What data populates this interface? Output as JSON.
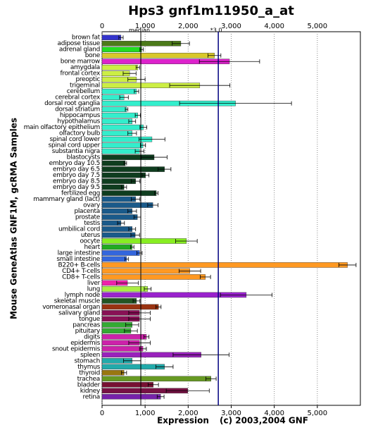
{
  "chart_data": {
    "type": "bar",
    "orientation": "horizontal",
    "title": "Hps3 gnf1m11950_a_at",
    "y_label": "Mouse GeneAtlas GNF1M, gcRMA Samples",
    "x_label": "Expression",
    "credit": "(c) 2003,2004 GNF",
    "median": 900,
    "median_label": "median",
    "median_multiple": {
      "value": 3,
      "label": "*3.0"
    },
    "categories": [
      "brown fat",
      "adipose tissue",
      "adrenal gland",
      "bone",
      "bone marrow",
      "amygdala",
      "frontal cortex",
      "preoptic",
      "trigeminal",
      "cerebellum",
      "cerebral cortex",
      "dorsal root ganglia",
      "dorsal striatum",
      "hippocampus",
      "hypothalamus",
      "main olfactory epithelium",
      "olfactory bulb",
      "spinal cord lower",
      "spinal cord upper",
      "substantia nigra",
      "blastocysts",
      "embryo day 10.5",
      "embryo day 6.5",
      "embryo day 7.5",
      "embryo day 8.5",
      "embryo day 9.5",
      "fertilized egg",
      "mammary gland (lact)",
      "ovary",
      "placenta",
      "prostate",
      "testis",
      "umbilical cord",
      "uterus",
      "oocyte",
      "heart",
      "large intestine",
      "small intestine",
      "B220+ B-cells",
      "CD4+ T-cells",
      "CD8+ T-cells",
      "liver",
      "lung",
      "lymph node",
      "skeletal muscle",
      "vomeronasal organ",
      "salivary gland",
      "tongue",
      "pancreas",
      "pituitary",
      "digits",
      "epidermis",
      "snout epidermis",
      "spleen",
      "stomach",
      "thymus",
      "thyroid",
      "trachea",
      "bladder",
      "kidney",
      "retina"
    ],
    "values": [
      440,
      1830,
      920,
      2610,
      2960,
      830,
      640,
      800,
      2270,
      800,
      510,
      3100,
      570,
      830,
      700,
      960,
      700,
      1160,
      950,
      870,
      1210,
      540,
      1450,
      1010,
      780,
      510,
      1260,
      780,
      1180,
      700,
      820,
      440,
      700,
      770,
      1960,
      700,
      870,
      570,
      5700,
      2040,
      2400,
      590,
      1060,
      3350,
      800,
      1310,
      870,
      870,
      700,
      670,
      1030,
      870,
      950,
      2300,
      700,
      1450,
      510,
      2530,
      1190,
      1990,
      1360
    ],
    "errors": [
      50,
      200,
      40,
      150,
      700,
      40,
      150,
      200,
      700,
      50,
      100,
      1300,
      30,
      60,
      80,
      80,
      100,
      300,
      60,
      100,
      300,
      30,
      150,
      80,
      100,
      60,
      40,
      100,
      120,
      100,
      80,
      80,
      80,
      100,
      250,
      40,
      60,
      40,
      200,
      250,
      120,
      250,
      80,
      600,
      80,
      60,
      250,
      250,
      150,
      150,
      60,
      250,
      80,
      650,
      200,
      200,
      60,
      120,
      120,
      500,
      80
    ],
    "colors": [
      "#3333cc",
      "#4c7a1a",
      "#22dd22",
      "#d8c82a",
      "#dd22cc",
      "#ccee44",
      "#ccee44",
      "#ccee44",
      "#ccee44",
      "#33eecc",
      "#33eecc",
      "#33eecc",
      "#33eecc",
      "#33eecc",
      "#33eecc",
      "#33eecc",
      "#33eecc",
      "#33eecc",
      "#33eecc",
      "#33eecc",
      "#0f3d1f",
      "#0f3d1f",
      "#0f3d1f",
      "#0f3d1f",
      "#0f3d1f",
      "#0f3d1f",
      "#0f3d1f",
      "#1a5a8a",
      "#1a5a8a",
      "#1a5a8a",
      "#1a5a8a",
      "#1a5a8a",
      "#1a5a8a",
      "#1a5a8a",
      "#88ee22",
      "#22aa22",
      "#3366dd",
      "#3366dd",
      "#ff9922",
      "#ff9922",
      "#ff9922",
      "#ee22aa",
      "#aaee44",
      "#9922cc",
      "#225522",
      "#993311",
      "#881155",
      "#881155",
      "#33aa33",
      "#33aa33",
      "#cc22aa",
      "#cc22aa",
      "#cc22aa",
      "#9922bb",
      "#22aaaa",
      "#22aaaa",
      "#997711",
      "#669922",
      "#771133",
      "#771144",
      "#7722aa"
    ],
    "xlim": [
      0,
      6000
    ],
    "xticks": [
      0,
      {
        "value": 1000,
        "label": "1,000"
      },
      {
        "value": 2000,
        "label": "2,000"
      },
      {
        "value": 3000,
        "label": "3,000"
      },
      {
        "value": 4000,
        "label": "4,000"
      },
      {
        "value": 5000,
        "label": "5,000"
      }
    ],
    "grid": true
  }
}
